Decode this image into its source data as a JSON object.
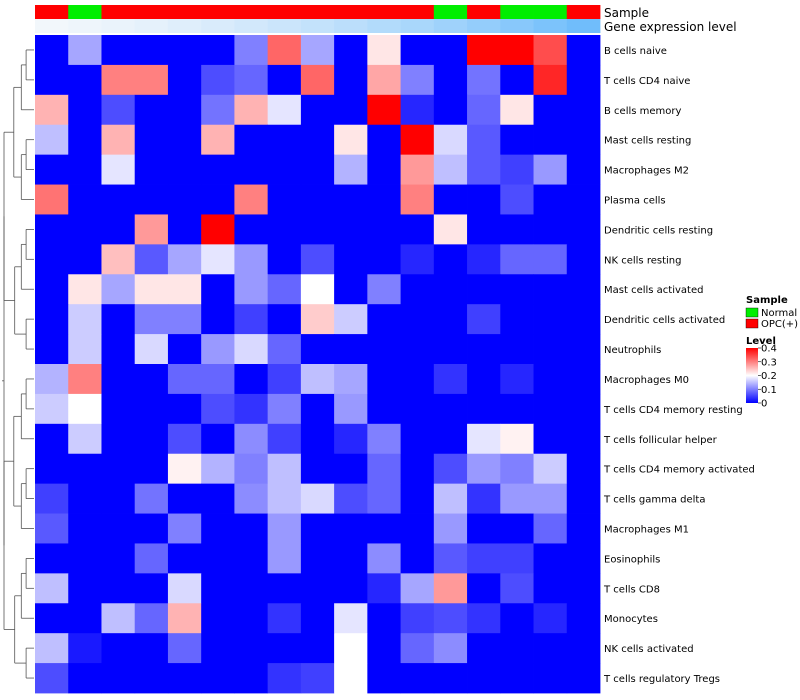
{
  "chart_data": {
    "type": "heatmap",
    "annotations": {
      "sample_track_label": "Sample",
      "gene_track_label": "Gene expression level",
      "sample_groups": [
        "OPC(+)",
        "Normal",
        "OPC(+)",
        "OPC(+)",
        "OPC(+)",
        "OPC(+)",
        "OPC(+)",
        "OPC(+)",
        "OPC(+)",
        "OPC(+)",
        "OPC(+)",
        "OPC(+)",
        "Normal",
        "OPC(+)",
        "Normal",
        "Normal",
        "OPC(+)"
      ],
      "gene_level_colors": [
        "#f2f7fb",
        "#eef5fb",
        "#eaf3fb",
        "#e5f1fb",
        "#dfeefb",
        "#d9ebfb",
        "#d2e8fb",
        "#cbe5fb",
        "#c3e2fb",
        "#bbdefb",
        "#b2dbfb",
        "#a9d7fb",
        "#9fd2fb",
        "#94cdfb",
        "#88c8fb",
        "#7cc3fb",
        "#70bdfb"
      ]
    },
    "rows": [
      "B cells naive",
      "T cells CD4 naive",
      "B cells memory",
      "Mast cells resting",
      "Macrophages M2",
      "Plasma cells",
      "Dendritic cells resting",
      "NK cells resting",
      "Mast cells activated",
      "Dendritic cells activated",
      "Neutrophils",
      "Macrophages M0",
      "T cells CD4 memory resting",
      "T cells follicular helper",
      "T cells CD4 memory activated",
      "T cells gamma delta",
      "Macrophages M1",
      "Eosinophils",
      "T cells CD8",
      "Monocytes",
      "NK cells activated",
      "T cells regulatory  Tregs"
    ],
    "values": [
      [
        0,
        0.13,
        0,
        0,
        0,
        0,
        0.1,
        0.32,
        0.13,
        0,
        0.22,
        0,
        0,
        0.4,
        0.4,
        0.34,
        0
      ],
      [
        0,
        0,
        0.3,
        0.3,
        0,
        0.06,
        0.08,
        0,
        0.32,
        0,
        0.27,
        0.1,
        0,
        0.09,
        0,
        0.37,
        0
      ],
      [
        0.26,
        0,
        0.06,
        0,
        0,
        0.09,
        0.26,
        0.18,
        0,
        0,
        0.4,
        0.03,
        0,
        0.08,
        0.22,
        0,
        0
      ],
      [
        0.15,
        0,
        0.26,
        0,
        0,
        0.26,
        0,
        0,
        0,
        0.22,
        0,
        0.4,
        0.17,
        0.07,
        0,
        0,
        0
      ],
      [
        0,
        0,
        0.18,
        0,
        0,
        0,
        0,
        0,
        0,
        0.14,
        0,
        0.28,
        0.15,
        0.07,
        0.05,
        0.12,
        0
      ],
      [
        0.31,
        0,
        0,
        0,
        0,
        0,
        0.3,
        0,
        0,
        0,
        0,
        0.3,
        0,
        0,
        0.06,
        0,
        0
      ],
      [
        0,
        0,
        0,
        0.28,
        0,
        0.4,
        0,
        0,
        0,
        0,
        0,
        0,
        0.22,
        0,
        0,
        0,
        0
      ],
      [
        0,
        0,
        0.25,
        0.07,
        0.13,
        0.18,
        0.12,
        0,
        0.06,
        0,
        0,
        0.03,
        0,
        0.03,
        0.08,
        0.08,
        0
      ],
      [
        0,
        0.22,
        0.13,
        0.22,
        0.22,
        0,
        0.12,
        0.08,
        0.2,
        0,
        0.1,
        0,
        0,
        0,
        0,
        0,
        0
      ],
      [
        0,
        0.16,
        0,
        0.1,
        0.1,
        0,
        0.05,
        0,
        0.24,
        0.16,
        0,
        0,
        0,
        0.05,
        0,
        0,
        0
      ],
      [
        0,
        0.16,
        0,
        0.17,
        0,
        0.12,
        0.17,
        0.08,
        0,
        0,
        0,
        0,
        0,
        0,
        0,
        0,
        0
      ],
      [
        0.14,
        0.3,
        0,
        0,
        0.08,
        0.08,
        0,
        0.05,
        0.15,
        0.13,
        0,
        0,
        0.04,
        0,
        0.03,
        0,
        0
      ],
      [
        0.16,
        0.2,
        0,
        0,
        0,
        0.06,
        0.04,
        0.1,
        0,
        0.12,
        0,
        0,
        0,
        0,
        0,
        0,
        0
      ],
      [
        0,
        0.16,
        0,
        0,
        0.06,
        0,
        0.11,
        0.05,
        0,
        0.03,
        0.1,
        0,
        0,
        0.18,
        0.21,
        0,
        0
      ],
      [
        0,
        0,
        0,
        0,
        0.21,
        0.14,
        0.1,
        0.15,
        0,
        0,
        0.08,
        0,
        0.06,
        0.12,
        0.1,
        0.16,
        0
      ],
      [
        0.05,
        0,
        0,
        0.09,
        0,
        0,
        0.11,
        0.15,
        0.17,
        0.06,
        0.08,
        0,
        0.15,
        0.04,
        0.12,
        0.12,
        0
      ],
      [
        0.07,
        0,
        0,
        0,
        0.1,
        0,
        0,
        0.12,
        0,
        0,
        0,
        0,
        0.12,
        0,
        0,
        0.08,
        0
      ],
      [
        0,
        0,
        0,
        0.08,
        0,
        0,
        0,
        0.12,
        0,
        0,
        0.11,
        0,
        0.07,
        0.05,
        0.05,
        0,
        0
      ],
      [
        0.15,
        0,
        0,
        0,
        0.17,
        0,
        0,
        0,
        0,
        0,
        0.03,
        0.13,
        0.28,
        0,
        0.06,
        0,
        0
      ],
      [
        0,
        0,
        0.15,
        0.08,
        0.26,
        0,
        0,
        0.04,
        0,
        0.18,
        0,
        0.05,
        0.06,
        0.04,
        0,
        0.03,
        0
      ],
      [
        0.15,
        0.02,
        0,
        0,
        0.08,
        0,
        0,
        0,
        0,
        0.2,
        0,
        0.08,
        0.11,
        0,
        0,
        0,
        0
      ],
      [
        0.06,
        0,
        0,
        0,
        0,
        0,
        0,
        0.04,
        0.05,
        0.2,
        0,
        0,
        0,
        0,
        0,
        0,
        0
      ]
    ],
    "legend_sample": {
      "title": "Sample",
      "items": [
        {
          "label": "Normal",
          "color": "#00ee00"
        },
        {
          "label": "OPC(+)",
          "color": "#ff0000"
        }
      ]
    },
    "legend_level": {
      "title": "Level",
      "ticks": [
        {
          "value": 0.4,
          "label": "0.4"
        },
        {
          "value": 0.3,
          "label": "0.3"
        },
        {
          "value": 0.2,
          "label": "0.2"
        },
        {
          "value": 0.1,
          "label": "0.1"
        },
        {
          "value": 0,
          "label": "0"
        }
      ],
      "range": [
        0,
        0.4
      ]
    },
    "colors": {
      "low": "#0000ff",
      "mid": "#ffffff",
      "high": "#ff0000",
      "normal": "#00ee00",
      "opc": "#ff0000"
    },
    "dendrogram": "row-clustering-left"
  }
}
